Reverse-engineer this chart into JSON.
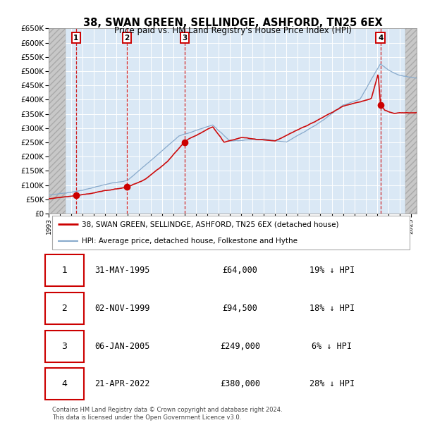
{
  "title": "38, SWAN GREEN, SELLINDGE, ASHFORD, TN25 6EX",
  "subtitle": "Price paid vs. HM Land Registry's House Price Index (HPI)",
  "ylim": [
    0,
    650000
  ],
  "yticks": [
    0,
    50000,
    100000,
    150000,
    200000,
    250000,
    300000,
    350000,
    400000,
    450000,
    500000,
    550000,
    600000,
    650000
  ],
  "ytick_labels": [
    "£0",
    "£50K",
    "£100K",
    "£150K",
    "£200K",
    "£250K",
    "£300K",
    "£350K",
    "£400K",
    "£450K",
    "£500K",
    "£550K",
    "£600K",
    "£650K"
  ],
  "xlim_start": 1993.0,
  "xlim_end": 2025.5,
  "hatch_left_end": 1994.5,
  "hatch_right_start": 2024.5,
  "sale_dates": [
    1995.416,
    1999.917,
    2005.017,
    2022.306
  ],
  "sale_prices": [
    64000,
    94500,
    249000,
    380000
  ],
  "sale_labels": [
    "1",
    "2",
    "3",
    "4"
  ],
  "sale_color": "#cc0000",
  "hpi_color": "#88aacc",
  "legend_label_property": "38, SWAN GREEN, SELLINDGE, ASHFORD, TN25 6EX (detached house)",
  "legend_label_hpi": "HPI: Average price, detached house, Folkestone and Hythe",
  "table_rows": [
    {
      "num": "1",
      "date": "31-MAY-1995",
      "price": "£64,000",
      "hpi": "19% ↓ HPI"
    },
    {
      "num": "2",
      "date": "02-NOV-1999",
      "price": "£94,500",
      "hpi": "18% ↓ HPI"
    },
    {
      "num": "3",
      "date": "06-JAN-2005",
      "price": "£249,000",
      "hpi": "6% ↓ HPI"
    },
    {
      "num": "4",
      "date": "21-APR-2022",
      "price": "£380,000",
      "hpi": "28% ↓ HPI"
    }
  ],
  "footer": "Contains HM Land Registry data © Crown copyright and database right 2024.\nThis data is licensed under the Open Government Licence v3.0.",
  "plot_bg_color": "#dae8f5",
  "grid_color": "#ffffff"
}
